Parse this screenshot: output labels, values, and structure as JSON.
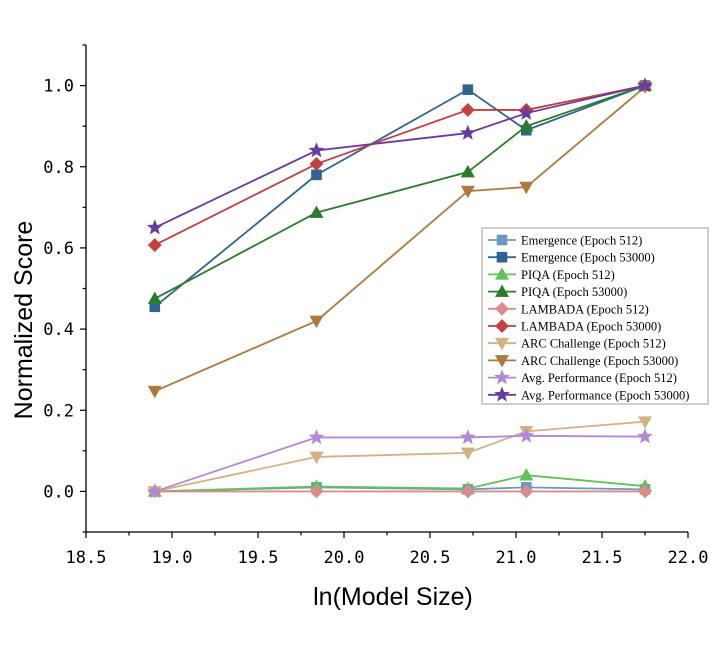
{
  "chart_data": {
    "type": "line",
    "title": "",
    "xlabel": "ln(Model Size)",
    "ylabel": "Normalized Score",
    "xlim": [
      18.5,
      22.0
    ],
    "ylim": [
      -0.1,
      1.1
    ],
    "xticks": [
      "18.5",
      "19.0",
      "19.5",
      "20.0",
      "20.5",
      "21.0",
      "21.5",
      "22.0"
    ],
    "yticks": [
      "0.0",
      "0.2",
      "0.4",
      "0.6",
      "0.8",
      "1.0"
    ],
    "x": [
      18.9,
      19.84,
      20.72,
      21.06,
      21.75
    ],
    "legend_position": "center-right",
    "series": [
      {
        "name": "Emergence (Epoch 512)",
        "color": "#6b97c0",
        "marker": "square",
        "values": [
          0.0,
          0.01,
          0.005,
          0.01,
          0.005
        ]
      },
      {
        "name": "Emergence (Epoch 53000)",
        "color": "#2f6391",
        "marker": "square",
        "values": [
          0.455,
          0.78,
          0.99,
          0.89,
          1.0
        ]
      },
      {
        "name": "PIQA (Epoch 512)",
        "color": "#64c15a",
        "marker": "triangle-up",
        "values": [
          0.0,
          0.012,
          0.007,
          0.04,
          0.013
        ]
      },
      {
        "name": "PIQA (Epoch 53000)",
        "color": "#2c7b2c",
        "marker": "triangle-up",
        "values": [
          0.475,
          0.687,
          0.787,
          0.9,
          1.0
        ]
      },
      {
        "name": "LAMBADA (Epoch 512)",
        "color": "#d98c8c",
        "marker": "diamond",
        "values": [
          0.0,
          0.0,
          0.0,
          0.0,
          0.0
        ]
      },
      {
        "name": "LAMBADA (Epoch 53000)",
        "color": "#c24040",
        "marker": "diamond",
        "values": [
          0.607,
          0.807,
          0.94,
          0.94,
          1.0
        ]
      },
      {
        "name": "ARC Challenge (Epoch 512)",
        "color": "#d2b185",
        "marker": "triangle-down",
        "values": [
          0.0,
          0.085,
          0.095,
          0.148,
          0.172
        ]
      },
      {
        "name": "ARC Challenge (Epoch 53000)",
        "color": "#ad7a3e",
        "marker": "triangle-down",
        "values": [
          0.247,
          0.42,
          0.74,
          0.75,
          0.997
        ]
      },
      {
        "name": "Avg. Performance (Epoch 512)",
        "color": "#b189d8",
        "marker": "star",
        "values": [
          0.0,
          0.133,
          0.133,
          0.137,
          0.135
        ]
      },
      {
        "name": "Avg. Performance (Epoch 53000)",
        "color": "#6a3aa2",
        "marker": "star",
        "values": [
          0.65,
          0.84,
          0.883,
          0.932,
          1.0
        ]
      }
    ]
  }
}
